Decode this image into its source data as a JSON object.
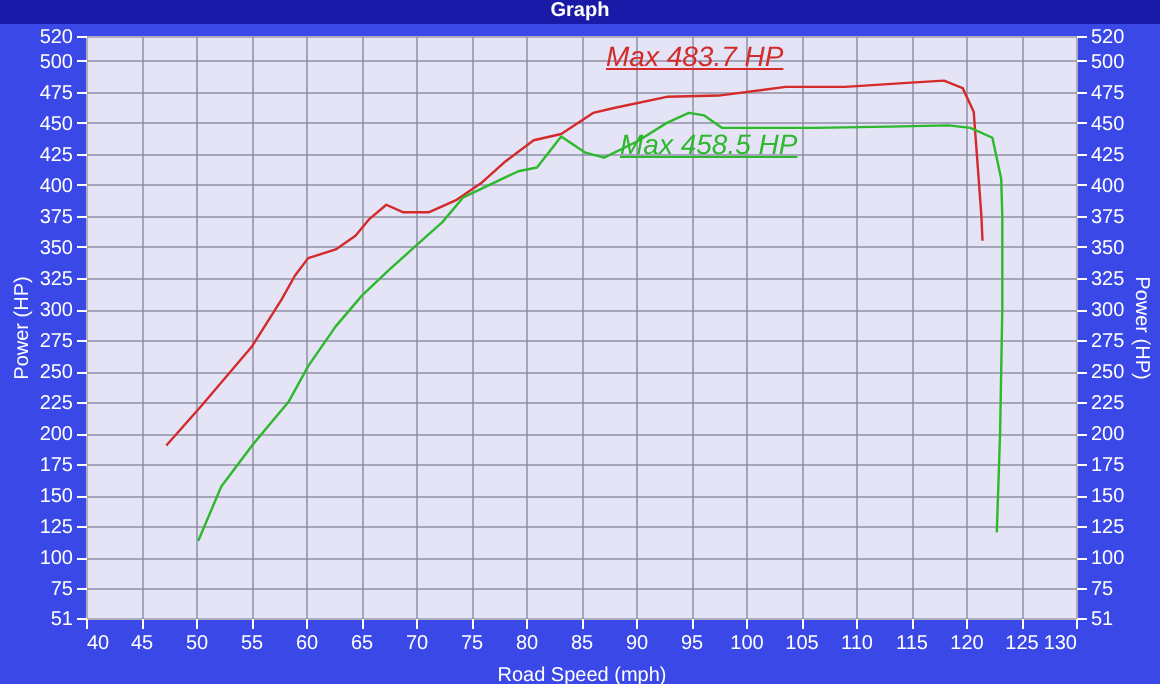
{
  "chart_data": {
    "type": "line",
    "title": "Graph",
    "xlabel": "Road Speed (mph)",
    "ylabel": "Power (HP)",
    "y2label": "Power (HP)",
    "xlim": [
      40,
      130
    ],
    "xticks": [
      40,
      45,
      50,
      55,
      60,
      65,
      70,
      75,
      80,
      85,
      90,
      95,
      100,
      105,
      110,
      115,
      120,
      125,
      130
    ],
    "ylim": [
      51,
      520
    ],
    "yticks": [
      51,
      75,
      100,
      125,
      150,
      175,
      200,
      225,
      250,
      275,
      300,
      325,
      350,
      375,
      400,
      425,
      450,
      475,
      500,
      520
    ],
    "y2lim": [
      51,
      520
    ],
    "y2ticks": [
      51,
      75,
      100,
      125,
      150,
      175,
      200,
      225,
      250,
      275,
      300,
      325,
      350,
      375,
      400,
      425,
      450,
      475,
      500,
      520
    ],
    "grid": true,
    "annotations": [
      "Max 483.7 HP",
      "Max 458.5 HP"
    ],
    "series": [
      {
        "color": "#d42a2a",
        "x": [
          47.3,
          50.5,
          55.1,
          57.8,
          59,
          60.2,
          62.7,
          64.5,
          65.7,
          67.3,
          68.8,
          71.2,
          73.7,
          76,
          78,
          80.7,
          83.2,
          86.1,
          88,
          92.8,
          97.5,
          103.6,
          109,
          114.3,
          118,
          119.7,
          120.7,
          121.4,
          121.5
        ],
        "values": [
          190,
          222,
          270,
          308,
          327,
          341,
          348,
          359,
          372,
          384,
          378,
          378,
          388,
          402,
          418,
          436,
          441,
          458,
          462,
          471,
          472,
          479,
          479,
          482,
          484,
          478,
          459,
          375,
          355
        ]
      },
      {
        "color": "#2db82d",
        "x": [
          50.2,
          52.3,
          55.1,
          58.4,
          60.2,
          62.7,
          65.1,
          67.6,
          70,
          72.4,
          74.3,
          79.3,
          81,
          83.2,
          85.4,
          87.1,
          90.1,
          92.8,
          94.8,
          96.2,
          97.8,
          106.3,
          113,
          118.4,
          120.4,
          122.4,
          123.2,
          123.3,
          123.3,
          123.1,
          122.8
        ],
        "values": [
          113,
          157,
          190,
          225,
          254,
          286,
          311,
          332,
          351,
          370,
          390,
          411,
          414,
          439,
          426,
          422,
          435,
          450,
          458,
          456,
          446,
          446,
          447,
          448,
          446,
          438,
          405,
          375,
          300,
          200,
          120
        ]
      }
    ]
  }
}
